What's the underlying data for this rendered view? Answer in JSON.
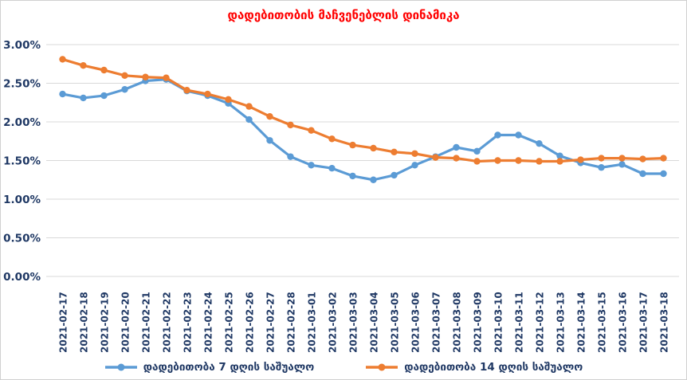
{
  "chart_data": {
    "type": "line",
    "title": "დადებითობის მაჩვენებლის დინამიკა",
    "title_color": "#FF0000",
    "axis_label_color": "#1F3864",
    "gridline_color": "#D9D9D9",
    "grid": "horizontal",
    "legend_position": "bottom",
    "ylim": [
      0,
      3.0
    ],
    "y_tick_values": [
      0,
      0.5,
      1.0,
      1.5,
      2.0,
      2.5,
      3.0
    ],
    "y_tick_labels": [
      "0.00%",
      "0.50%",
      "1.00%",
      "1.50%",
      "2.00%",
      "2.50%",
      "3.00%"
    ],
    "x": [
      "2021-02-17",
      "2021-02-18",
      "2021-02-19",
      "2021-02-20",
      "2021-02-21",
      "2021-02-22",
      "2021-02-23",
      "2021-02-24",
      "2021-02-25",
      "2021-02-26",
      "2021-02-27",
      "2021-02-28",
      "2021-03-01",
      "2021-03-02",
      "2021-03-03",
      "2021-03-04",
      "2021-03-05",
      "2021-03-06",
      "2021-03-07",
      "2021-03-08",
      "2021-03-09",
      "2021-03-10",
      "2021-03-11",
      "2021-03-12",
      "2021-03-13",
      "2021-03-14",
      "2021-03-15",
      "2021-03-16",
      "2021-03-17",
      "2021-03-18"
    ],
    "series": [
      {
        "name": "დადებითობა 7 დღის საშუალო",
        "color": "#5B9BD5",
        "values": [
          2.36,
          2.31,
          2.34,
          2.42,
          2.53,
          2.55,
          2.4,
          2.34,
          2.24,
          2.03,
          1.76,
          1.55,
          1.44,
          1.4,
          1.3,
          1.25,
          1.31,
          1.44,
          1.55,
          1.67,
          1.62,
          1.83,
          1.83,
          1.72,
          1.56,
          1.47,
          1.41,
          1.45,
          1.33,
          1.33
        ]
      },
      {
        "name": "დადებითობა 14 დღის საშუალო",
        "color": "#ED7D31",
        "values": [
          2.81,
          2.73,
          2.67,
          2.6,
          2.58,
          2.57,
          2.41,
          2.36,
          2.29,
          2.2,
          2.07,
          1.96,
          1.89,
          1.78,
          1.7,
          1.66,
          1.61,
          1.59,
          1.54,
          1.53,
          1.49,
          1.5,
          1.5,
          1.49,
          1.49,
          1.51,
          1.53,
          1.53,
          1.52,
          1.53
        ]
      }
    ]
  }
}
